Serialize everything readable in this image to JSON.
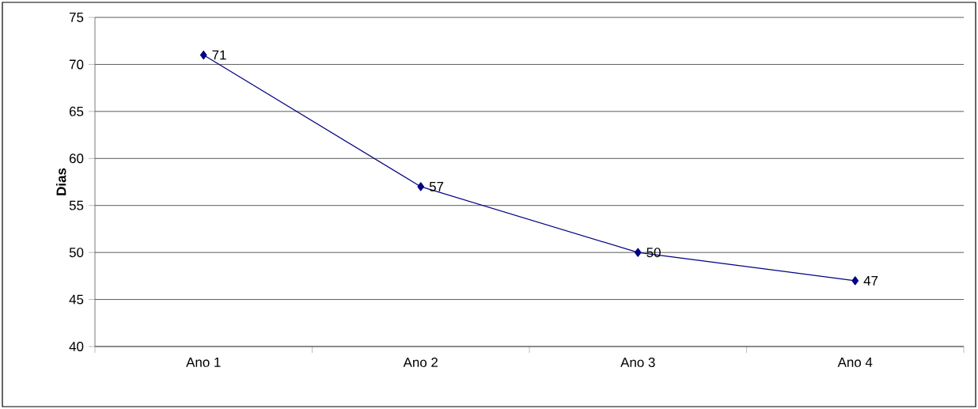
{
  "chart_data": {
    "type": "line",
    "ylabel": "Dias",
    "categories": [
      "Ano 1",
      "Ano 2",
      "Ano 3",
      "Ano 4"
    ],
    "series": [
      {
        "color": "#000080",
        "values": [
          71,
          57,
          50,
          47
        ]
      }
    ],
    "ylim": [
      40,
      75
    ],
    "yticks": [
      40,
      45,
      50,
      55,
      60,
      65,
      70,
      75
    ],
    "grid": "y",
    "marker": "diamond",
    "line_style": "solid",
    "data_labels": true
  }
}
